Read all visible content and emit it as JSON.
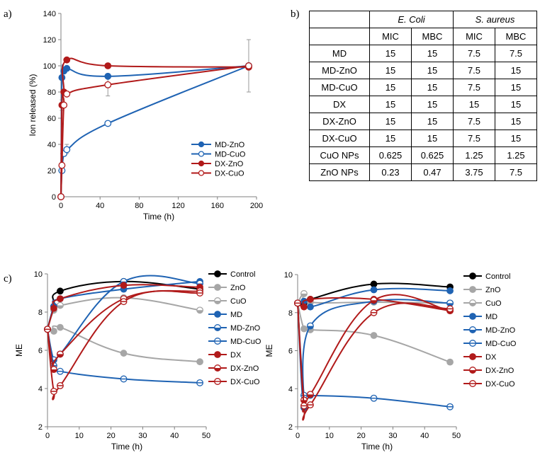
{
  "panel_labels": {
    "a": "a)",
    "b": "b)",
    "c": "c)"
  },
  "colors": {
    "black": "#000000",
    "gray": "#a6a6a6",
    "blue": "#1f63b3",
    "red": "#b11a1a",
    "axis": "#808080"
  },
  "chart_data": [
    {
      "id": "a",
      "type": "line",
      "title": "",
      "xlabel": "Time (h)",
      "ylabel": "Ion released (%)",
      "xlim": [
        0,
        200
      ],
      "ylim": [
        0,
        140
      ],
      "xticks": [
        0,
        40,
        80,
        120,
        160,
        200
      ],
      "yticks": [
        0,
        20,
        40,
        60,
        80,
        100,
        120,
        140
      ],
      "legend_position": "bottom-right",
      "series": [
        {
          "name": "MD-ZnO",
          "color": "#1f63b3",
          "marker": "filled",
          "x": [
            0,
            1,
            3,
            6,
            48,
            192
          ],
          "y": [
            0,
            91,
            96,
            98,
            92,
            100
          ]
        },
        {
          "name": "MD-CuO",
          "color": "#1f63b3",
          "marker": "open",
          "x": [
            0,
            1,
            3,
            6,
            48,
            192
          ],
          "y": [
            0,
            20,
            33,
            36,
            56,
            100
          ]
        },
        {
          "name": "DX-ZnO",
          "color": "#b11a1a",
          "marker": "filled",
          "x": [
            0,
            1,
            3,
            6,
            48,
            192
          ],
          "y": [
            0,
            70,
            80,
            104.5,
            100,
            99
          ]
        },
        {
          "name": "DX-CuO",
          "color": "#b11a1a",
          "marker": "open",
          "x": [
            0,
            1,
            3,
            6,
            48,
            192
          ],
          "y": [
            0,
            24,
            70,
            78.5,
            85.5,
            100
          ]
        }
      ],
      "error_bars": [
        {
          "x": 192,
          "y": 100,
          "low": 80,
          "high": 120
        },
        {
          "x": 48,
          "y": 85.5,
          "low": 77,
          "high": 94
        },
        {
          "x": 6,
          "y": 36,
          "low": 33,
          "high": 40
        },
        {
          "x": 1,
          "y": 70,
          "low": 66,
          "high": 74
        }
      ]
    },
    {
      "id": "b",
      "type": "table",
      "group_headers": [
        "E. Coli",
        "S. aureus"
      ],
      "sub_headers": [
        "MIC",
        "MBC",
        "MIC",
        "MBC"
      ],
      "rows": [
        {
          "label": "MD",
          "values": [
            "15",
            "15",
            "7.5",
            "7.5"
          ]
        },
        {
          "label": "MD-ZnO",
          "values": [
            "15",
            "15",
            "7.5",
            "15"
          ]
        },
        {
          "label": "MD-CuO",
          "values": [
            "15",
            "15",
            "7.5",
            "15"
          ]
        },
        {
          "label": "DX",
          "values": [
            "15",
            "15",
            "15",
            "15"
          ]
        },
        {
          "label": "DX-ZnO",
          "values": [
            "15",
            "15",
            "7.5",
            "15"
          ]
        },
        {
          "label": "DX-CuO",
          "values": [
            "15",
            "15",
            "7.5",
            "15"
          ]
        },
        {
          "label": "CuO NPs",
          "values": [
            "0.625",
            "0.625",
            "1.25",
            "1.25"
          ]
        },
        {
          "label": "ZnO NPs",
          "values": [
            "0.23",
            "0.47",
            "3.75",
            "7.5"
          ]
        }
      ]
    },
    {
      "id": "c1",
      "type": "line",
      "title": "",
      "xlabel": "Time (h)",
      "ylabel": "ME",
      "xlim": [
        0,
        50
      ],
      "ylim": [
        2,
        10
      ],
      "xticks": [
        0,
        10,
        20,
        30,
        40,
        50
      ],
      "yticks": [
        2,
        4,
        6,
        8,
        10
      ],
      "legend_position": "right",
      "series": [
        {
          "name": "Control",
          "color": "#000000",
          "marker": "filled",
          "x": [
            0,
            2,
            4,
            24,
            48
          ],
          "y": [
            7.1,
            8.3,
            9.1,
            9.6,
            9.2
          ]
        },
        {
          "name": "ZnO",
          "color": "#a6a6a6",
          "marker": "filled",
          "x": [
            0,
            2,
            4,
            24,
            48
          ],
          "y": [
            7.1,
            7.0,
            7.2,
            5.85,
            5.4
          ]
        },
        {
          "name": "CuO",
          "color": "#a6a6a6",
          "marker": "half",
          "x": [
            0,
            2,
            4,
            24,
            48
          ],
          "y": [
            7.1,
            8.1,
            8.35,
            8.75,
            8.1
          ]
        },
        {
          "name": "MD",
          "color": "#1f63b3",
          "marker": "filled",
          "x": [
            0,
            2,
            4,
            24,
            48
          ],
          "y": [
            7.1,
            8.3,
            8.7,
            9.2,
            9.6
          ]
        },
        {
          "name": "MD-ZnO",
          "color": "#1f63b3",
          "marker": "half",
          "x": [
            0,
            2,
            4,
            24,
            48
          ],
          "y": [
            7.1,
            5.5,
            5.8,
            9.6,
            9.5
          ]
        },
        {
          "name": "MD-CuO",
          "color": "#1f63b3",
          "marker": "open-bar",
          "x": [
            0,
            2,
            4,
            24,
            48
          ],
          "y": [
            7.1,
            5.2,
            4.9,
            4.5,
            4.3
          ]
        },
        {
          "name": "DX",
          "color": "#b11a1a",
          "marker": "filled",
          "x": [
            0,
            2,
            4,
            24,
            48
          ],
          "y": [
            7.1,
            8.2,
            8.7,
            9.4,
            9.3
          ]
        },
        {
          "name": "DX-ZnO",
          "color": "#b11a1a",
          "marker": "half",
          "x": [
            0,
            2,
            4,
            24,
            48
          ],
          "y": [
            7.1,
            5.0,
            5.8,
            8.7,
            9.1
          ]
        },
        {
          "name": "DX-CuO",
          "color": "#b11a1a",
          "marker": "open-bar",
          "x": [
            0,
            2,
            4,
            24,
            48
          ],
          "y": [
            7.1,
            3.85,
            4.15,
            8.55,
            9.0
          ]
        }
      ]
    },
    {
      "id": "c2",
      "type": "line",
      "title": "",
      "xlabel": "Time (h)",
      "ylabel": "ME",
      "xlim": [
        0,
        50
      ],
      "ylim": [
        2,
        10
      ],
      "xticks": [
        0,
        10,
        20,
        30,
        40,
        50
      ],
      "yticks": [
        2,
        4,
        6,
        8,
        10
      ],
      "legend_position": "right",
      "series": [
        {
          "name": "Control",
          "color": "#000000",
          "marker": "filled",
          "x": [
            0,
            2,
            4,
            24,
            48
          ],
          "y": [
            8.5,
            8.5,
            8.7,
            9.5,
            9.35
          ]
        },
        {
          "name": "ZnO",
          "color": "#a6a6a6",
          "marker": "filled",
          "x": [
            0,
            2,
            4,
            24,
            48
          ],
          "y": [
            8.5,
            7.15,
            7.1,
            6.8,
            5.4
          ]
        },
        {
          "name": "CuO",
          "color": "#a6a6a6",
          "marker": "half",
          "x": [
            0,
            2,
            4,
            24,
            48
          ],
          "y": [
            8.5,
            9.0,
            8.55,
            8.55,
            8.5
          ]
        },
        {
          "name": "MD",
          "color": "#1f63b3",
          "marker": "filled",
          "x": [
            0,
            2,
            4,
            24,
            48
          ],
          "y": [
            8.5,
            8.6,
            8.3,
            9.2,
            9.15
          ]
        },
        {
          "name": "MD-ZnO",
          "color": "#1f63b3",
          "marker": "half",
          "x": [
            0,
            2,
            4,
            24,
            48
          ],
          "y": [
            8.5,
            3.0,
            7.3,
            8.6,
            8.5
          ]
        },
        {
          "name": "MD-CuO",
          "color": "#1f63b3",
          "marker": "open-bar",
          "x": [
            0,
            2,
            4,
            24,
            48
          ],
          "y": [
            8.5,
            3.65,
            3.65,
            3.5,
            3.05
          ]
        },
        {
          "name": "DX",
          "color": "#b11a1a",
          "marker": "filled",
          "x": [
            0,
            2,
            4,
            24,
            48
          ],
          "y": [
            8.5,
            8.3,
            8.7,
            8.7,
            8.1
          ]
        },
        {
          "name": "DX-ZnO",
          "color": "#b11a1a",
          "marker": "half",
          "x": [
            0,
            2,
            4,
            24,
            48
          ],
          "y": [
            8.5,
            3.4,
            3.7,
            8.65,
            8.1
          ]
        },
        {
          "name": "DX-CuO",
          "color": "#b11a1a",
          "marker": "open-bar",
          "x": [
            0,
            2,
            4,
            24,
            48
          ],
          "y": [
            8.5,
            3.1,
            3.15,
            8.0,
            8.2
          ]
        }
      ]
    }
  ]
}
